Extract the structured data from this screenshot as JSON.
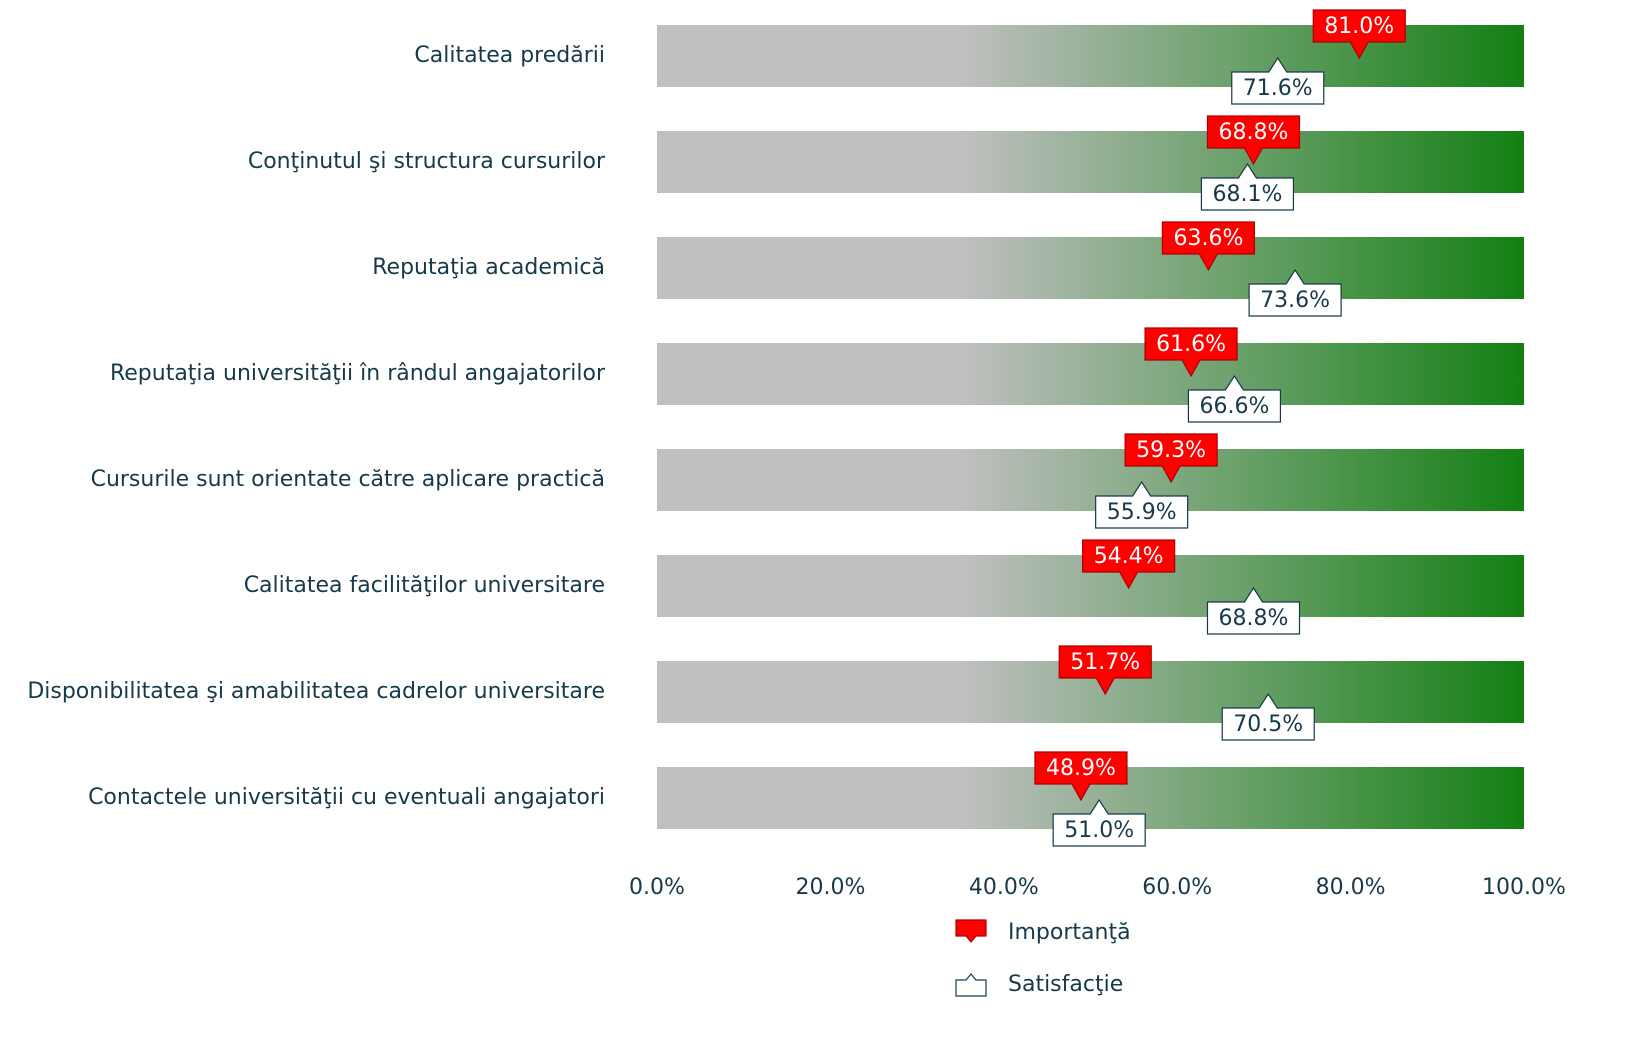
{
  "chart_data": {
    "type": "marker",
    "categories": [
      "Calitatea predării",
      "Conţinutul şi structura cursurilor",
      "Reputaţia academică",
      "Reputaţia universităţii în rândul angajatorilor",
      "Cursurile sunt orientate către aplicare practică",
      "Calitatea facilităţilor universitare",
      "Disponibilitatea şi amabilitatea cadrelor universitare",
      "Contactele universităţii cu eventuali angajatori"
    ],
    "series": [
      {
        "name": "Importanţă",
        "color": "#ff0000",
        "values": [
          81.0,
          68.8,
          63.6,
          61.6,
          59.3,
          54.4,
          51.7,
          48.9
        ],
        "value_labels": [
          "81.0%",
          "68.8%",
          "63.6%",
          "61.6%",
          "59.3%",
          "54.4%",
          "51.7%",
          "48.9%"
        ]
      },
      {
        "name": "Satisfacţie",
        "color": "#ffffff",
        "values": [
          71.6,
          68.1,
          73.6,
          66.6,
          55.9,
          68.8,
          70.5,
          51.0
        ],
        "value_labels": [
          "71.6%",
          "68.1%",
          "73.6%",
          "66.6%",
          "55.9%",
          "68.8%",
          "70.5%",
          "51.0%"
        ]
      }
    ],
    "xlim": [
      0,
      100
    ],
    "xticks": [
      {
        "value": 0,
        "label": "0.0%"
      },
      {
        "value": 20,
        "label": "20.0%"
      },
      {
        "value": 40,
        "label": "40.0%"
      },
      {
        "value": 60,
        "label": "60.0%"
      },
      {
        "value": 80,
        "label": "80.0%"
      },
      {
        "value": 100,
        "label": "100.0%"
      }
    ],
    "band_colors": [
      "#c0c0c0",
      "#138013"
    ],
    "legend": "bottom"
  }
}
